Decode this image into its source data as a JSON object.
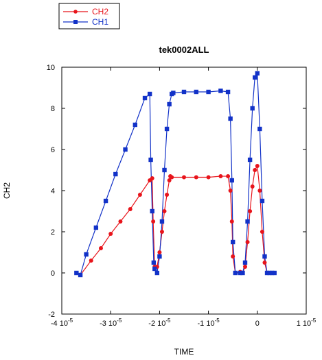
{
  "chart_data": {
    "type": "line",
    "title": "tek0002ALL",
    "xlabel": "TIME",
    "ylabel": "CH2",
    "xlim": [
      -4e-05,
      1e-05
    ],
    "ylim": [
      -2,
      10
    ],
    "xticks": [
      {
        "value": -4e-05,
        "label": "-4 10",
        "exp": "-5"
      },
      {
        "value": -3e-05,
        "label": "-3 10",
        "exp": "-5"
      },
      {
        "value": -2e-05,
        "label": "-2 10",
        "exp": "-5"
      },
      {
        "value": -1e-05,
        "label": "-1 10",
        "exp": "-5"
      },
      {
        "value": 0,
        "label": "0",
        "exp": ""
      },
      {
        "value": 1e-05,
        "label": "1 10",
        "exp": "-5"
      }
    ],
    "yticks": [
      {
        "value": -2,
        "label": "-2"
      },
      {
        "value": 0,
        "label": "0"
      },
      {
        "value": 2,
        "label": "2"
      },
      {
        "value": 4,
        "label": "4"
      },
      {
        "value": 6,
        "label": "6"
      },
      {
        "value": 8,
        "label": "8"
      },
      {
        "value": 10,
        "label": "10"
      }
    ],
    "grid": false,
    "legend_position": "top-left",
    "series": [
      {
        "name": "CH2",
        "color": "#e8141b",
        "marker": "circle",
        "x": [
          -3.7e-05,
          -3.62e-05,
          -3.4e-05,
          -3.2e-05,
          -3e-05,
          -2.8e-05,
          -2.6e-05,
          -2.4e-05,
          -2.2e-05,
          -2.15e-05,
          -2.13e-05,
          -2.1e-05,
          -2.05e-05,
          -2e-05,
          -1.95e-05,
          -1.9e-05,
          -1.85e-05,
          -1.8e-05,
          -1.78e-05,
          -1.75e-05,
          -1.5e-05,
          -1.25e-05,
          -1e-05,
          -7.5e-06,
          -6e-06,
          -5.5e-06,
          -5.2e-06,
          -5e-06,
          -4.5e-06,
          -3.5e-06,
          -3e-06,
          -2.5e-06,
          -2e-06,
          -1.5e-06,
          -1e-06,
          -5e-07,
          0,
          5e-07,
          1e-06,
          1.5e-06,
          2e-06,
          2.5e-06,
          3e-06,
          3.5e-06
        ],
        "y": [
          0,
          -0.1,
          0.6,
          1.2,
          1.9,
          2.5,
          3.1,
          3.8,
          4.5,
          4.6,
          2.5,
          0.3,
          0.3,
          1.0,
          2.0,
          3.0,
          3.8,
          4.5,
          4.7,
          4.65,
          4.65,
          4.65,
          4.65,
          4.7,
          4.7,
          4.0,
          2.5,
          0.8,
          0.0,
          0.05,
          0.0,
          0.3,
          1.5,
          3.0,
          4.2,
          5.0,
          5.2,
          4.0,
          2.0,
          0.5,
          0.0,
          0.0,
          0.0,
          0.0
        ]
      },
      {
        "name": "CH1",
        "color": "#1232c8",
        "marker": "square",
        "x": [
          -3.7e-05,
          -3.62e-05,
          -3.5e-05,
          -3.3e-05,
          -3.1e-05,
          -2.9e-05,
          -2.7e-05,
          -2.5e-05,
          -2.3e-05,
          -2.2e-05,
          -2.18e-05,
          -2.15e-05,
          -2.12e-05,
          -2.1e-05,
          -2.05e-05,
          -2e-05,
          -1.95e-05,
          -1.9e-05,
          -1.85e-05,
          -1.8e-05,
          -1.75e-05,
          -1.72e-05,
          -1.5e-05,
          -1.25e-05,
          -1e-05,
          -7.5e-06,
          -6e-06,
          -5.5e-06,
          -5.2e-06,
          -5e-06,
          -4.5e-06,
          -3.5e-06,
          -3e-06,
          -2.5e-06,
          -2e-06,
          -1.5e-06,
          -1e-06,
          -5e-07,
          0,
          5e-07,
          1e-06,
          1.5e-06,
          2e-06,
          2.5e-06,
          3e-06,
          3.5e-06
        ],
        "y": [
          0,
          -0.1,
          0.9,
          2.2,
          3.5,
          4.8,
          6.0,
          7.2,
          8.5,
          8.7,
          5.5,
          3.0,
          0.5,
          0.2,
          0.0,
          0.8,
          2.5,
          5.0,
          7.0,
          8.2,
          8.7,
          8.75,
          8.8,
          8.8,
          8.8,
          8.85,
          8.8,
          7.5,
          4.5,
          1.5,
          0.0,
          0.0,
          0.0,
          0.5,
          2.5,
          5.5,
          8.0,
          9.5,
          9.7,
          7.0,
          3.5,
          0.8,
          0.0,
          0.0,
          0.0,
          0.0
        ]
      }
    ]
  }
}
